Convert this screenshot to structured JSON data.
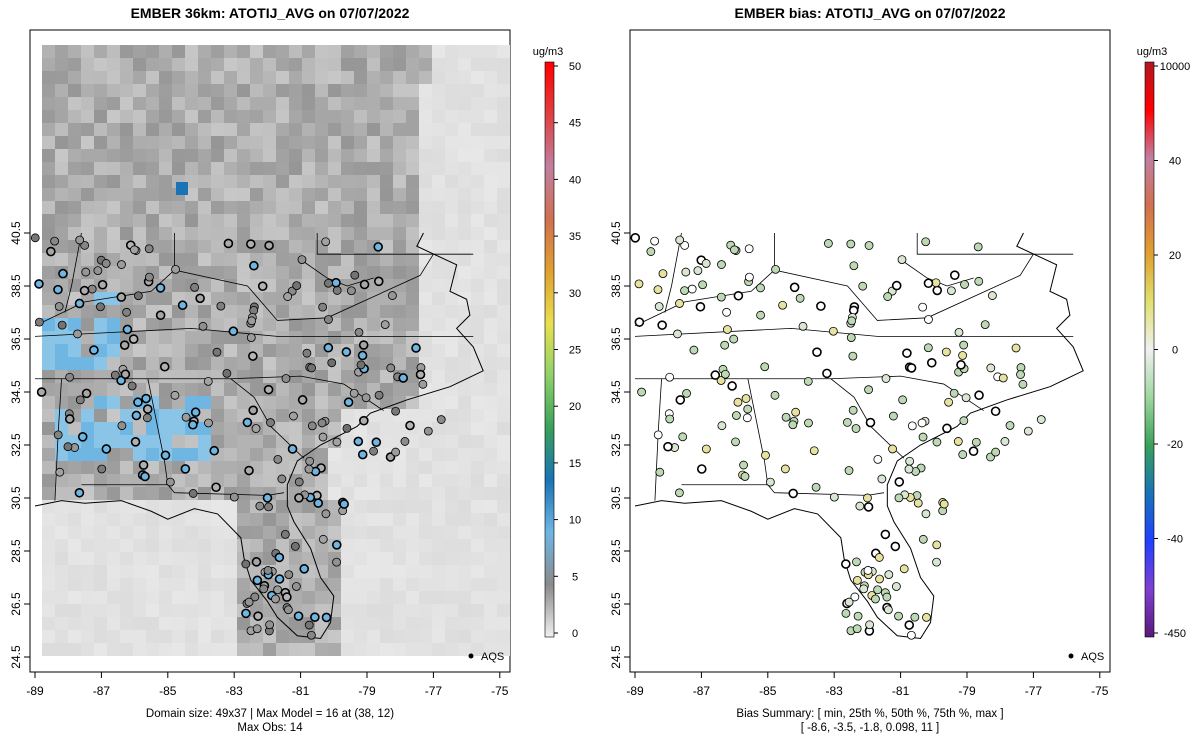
{
  "left_panel": {
    "title": "EMBER 36km: ATOTIJ_AVG on 07/07/2022",
    "caption_line1": "Domain size: 49x37 | Max Model = 16 at (38, 12)",
    "caption_line2": "Max Obs: 14",
    "units": "ug/m3",
    "legend_label": "AQS",
    "colorbar_ticks": [
      "0",
      "5",
      "10",
      "15",
      "20",
      "25",
      "30",
      "35",
      "40",
      "45",
      "50"
    ]
  },
  "right_panel": {
    "title": "EMBER bias: ATOTIJ_AVG on 07/07/2022",
    "caption_line1": "Bias Summary: [ min, 25th %, 50th %, 75th %, max ]",
    "caption_line2": "[ -8.6,   -3.5,   -1.8,   0.098,   11 ]",
    "units": "ug/m3",
    "legend_label": "AQS",
    "colorbar_ticks": [
      "-450",
      "-40",
      "-20",
      "0",
      "20",
      "40",
      "10000"
    ]
  },
  "axes": {
    "x_ticks": [
      "-89",
      "-87",
      "-85",
      "-83",
      "-81",
      "-79",
      "-77",
      "-75"
    ],
    "y_ticks": [
      "24.5",
      "26.5",
      "28.5",
      "30.5",
      "32.5",
      "34.5",
      "36.5",
      "38.5",
      "40.5"
    ]
  },
  "colors": {
    "map_background": "#e6e6e6",
    "model_high": "#4fa8e0",
    "bias_low": "#5a1a7a",
    "bias_high": "#b0171f"
  }
}
